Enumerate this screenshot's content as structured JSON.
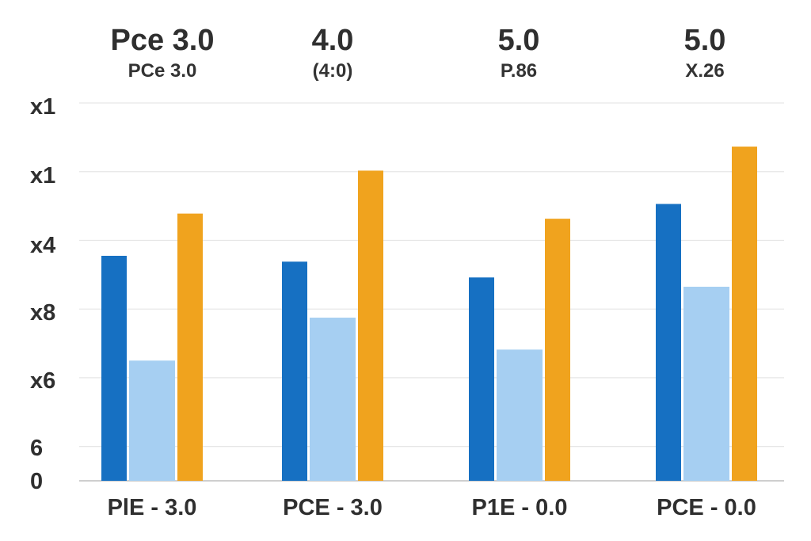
{
  "chart_data": {
    "type": "bar",
    "headers": [
      {
        "title": "Pce 3.0",
        "subtitle": "PCe 3.0"
      },
      {
        "title": "4.0",
        "subtitle": "(4:0)"
      },
      {
        "title": "5.0",
        "subtitle": "P.86"
      },
      {
        "title": "5.0",
        "subtitle": "X.26"
      }
    ],
    "categories": [
      "PlE - 3.0",
      "PCE - 3.0",
      "P1E - 0.0",
      "PCE - 0.0"
    ],
    "y_tick_labels": [
      "0",
      "6",
      "x6",
      "x8",
      "x4",
      "x1",
      "x1"
    ],
    "ylim": [
      0,
      11
    ],
    "grid": true,
    "series": [
      {
        "color": "#1670c2",
        "values": [
          6.55,
          6.38,
          5.92,
          8.06
        ]
      },
      {
        "color": "#a6cff2",
        "values": [
          3.5,
          4.75,
          3.82,
          5.65
        ]
      },
      {
        "color": "#f0a31e",
        "values": [
          7.78,
          9.03,
          7.63,
          9.73
        ]
      }
    ]
  }
}
